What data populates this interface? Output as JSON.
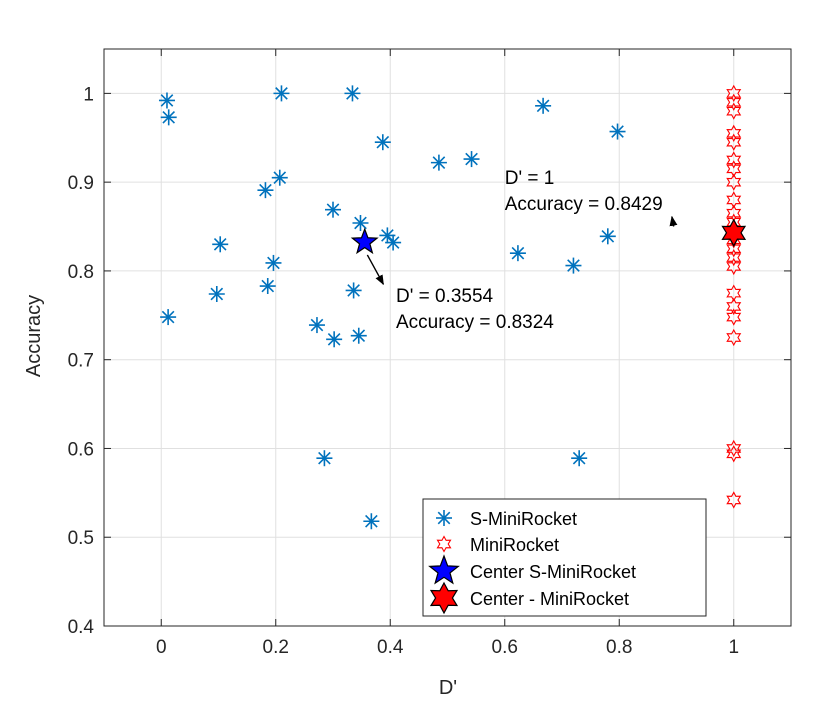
{
  "chart_data": {
    "type": "scatter",
    "xlabel": "D'",
    "ylabel": "Accuracy",
    "xlim": [
      -0.1,
      1.1
    ],
    "ylim": [
      0.4,
      1.05
    ],
    "xticks": [
      0,
      0.2,
      0.4,
      0.6,
      0.8,
      1
    ],
    "xtick_labels": [
      "0",
      "0.2",
      "0.4",
      "0.6",
      "0.8",
      "1"
    ],
    "yticks": [
      0.4,
      0.5,
      0.6,
      0.7,
      0.8,
      0.9,
      1
    ],
    "ytick_labels": [
      "0.4",
      "0.5",
      "0.6",
      "0.7",
      "0.8",
      "0.9",
      "1"
    ],
    "grid": true,
    "legend_position": "bottom-right",
    "series": [
      {
        "name": "S-MiniRocket",
        "marker": "asterisk",
        "color": "#0072BD",
        "points": [
          [
            0.01,
            0.992
          ],
          [
            0.013,
            0.973
          ],
          [
            0.012,
            0.748
          ],
          [
            0.21,
            1.0
          ],
          [
            0.334,
            1.0
          ],
          [
            0.387,
            0.945
          ],
          [
            0.485,
            0.922
          ],
          [
            0.542,
            0.926
          ],
          [
            0.667,
            0.986
          ],
          [
            0.797,
            0.957
          ],
          [
            0.182,
            0.891
          ],
          [
            0.207,
            0.905
          ],
          [
            0.3,
            0.869
          ],
          [
            0.348,
            0.854
          ],
          [
            0.395,
            0.84
          ],
          [
            0.405,
            0.832
          ],
          [
            0.103,
            0.83
          ],
          [
            0.196,
            0.809
          ],
          [
            0.623,
            0.82
          ],
          [
            0.72,
            0.806
          ],
          [
            0.78,
            0.839
          ],
          [
            0.097,
            0.774
          ],
          [
            0.186,
            0.783
          ],
          [
            0.336,
            0.778
          ],
          [
            0.272,
            0.739
          ],
          [
            0.302,
            0.723
          ],
          [
            0.345,
            0.727
          ],
          [
            0.285,
            0.589
          ],
          [
            0.73,
            0.589
          ],
          [
            0.367,
            0.518
          ]
        ]
      },
      {
        "name": "MiniRocket",
        "marker": "hexagram-open",
        "color": "#FF0000",
        "points": [
          [
            1,
            1.0
          ],
          [
            1,
            0.99
          ],
          [
            1,
            0.98
          ],
          [
            1,
            0.955
          ],
          [
            1,
            0.945
          ],
          [
            1,
            0.925
          ],
          [
            1,
            0.915
          ],
          [
            1,
            0.9
          ],
          [
            1,
            0.88
          ],
          [
            1,
            0.865
          ],
          [
            1,
            0.855
          ],
          [
            1,
            0.845
          ],
          [
            1,
            0.835
          ],
          [
            1,
            0.825
          ],
          [
            1,
            0.815
          ],
          [
            1,
            0.805
          ],
          [
            1,
            0.775
          ],
          [
            1,
            0.76
          ],
          [
            1,
            0.748
          ],
          [
            1,
            0.725
          ],
          [
            1,
            0.6
          ],
          [
            1,
            0.594
          ],
          [
            1,
            0.542
          ]
        ]
      },
      {
        "name": "Center S-MiniRocket",
        "marker": "pentagram-filled",
        "color": "#0000FF",
        "points": [
          [
            0.3554,
            0.8324
          ]
        ]
      },
      {
        "name": "Center - MiniRocket",
        "marker": "hexagram-filled",
        "color": "#FF0000",
        "points": [
          [
            1,
            0.8429
          ]
        ]
      }
    ],
    "annotations": [
      {
        "lines": [
          "D' = 1",
          "Accuracy = 0.8429"
        ],
        "text_anchor": [
          0.6,
          0.898
        ],
        "arrow_from": [
          0.895,
          0.85
        ],
        "arrow_to": [
          0.892,
          0.861
        ]
      },
      {
        "lines": [
          "D' = 0.3554",
          "Accuracy = 0.8324"
        ],
        "text_anchor": [
          0.41,
          0.765
        ],
        "arrow_from": [
          0.36,
          0.818
        ],
        "arrow_to": [
          0.388,
          0.785
        ]
      }
    ]
  },
  "legend": {
    "items": [
      {
        "label": "S-MiniRocket"
      },
      {
        "label": "MiniRocket"
      },
      {
        "label": "Center S-MiniRocket"
      },
      {
        "label": "Center - MiniRocket"
      }
    ]
  }
}
